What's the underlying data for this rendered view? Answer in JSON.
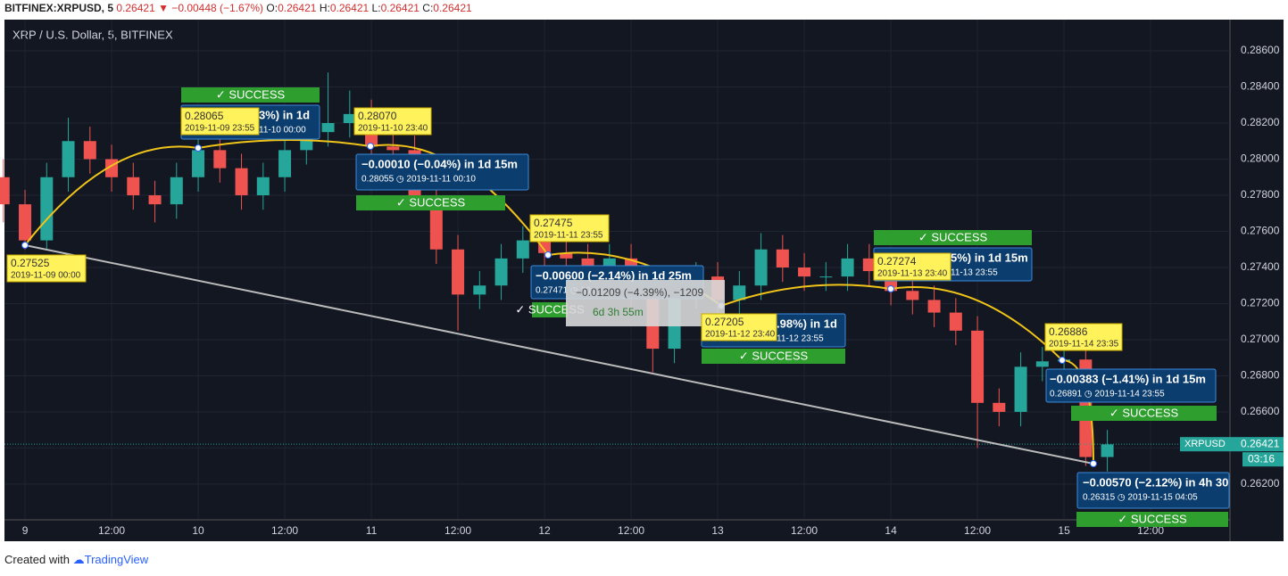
{
  "header": {
    "symbol": "BITFINEX:XRPUSD, 5",
    "last": "0.26421",
    "change": "▼ −0.00448 (−1.67%)",
    "ohlc": [
      {
        "label": "O:",
        "value": "0.26421"
      },
      {
        "label": "H:",
        "value": "0.26421"
      },
      {
        "label": "L:",
        "value": "0.26421"
      },
      {
        "label": "C:",
        "value": "0.26421"
      }
    ]
  },
  "chart_data": {
    "type": "candlestick",
    "title": "XRP / U.S. Dollar, 5, BITFINEX",
    "up_color": "#26a69a",
    "down_color": "#ef5350",
    "grid": true,
    "x": [
      -3,
      0,
      3,
      6,
      9,
      12,
      15,
      18,
      21,
      24,
      27,
      30,
      33,
      36,
      39,
      42,
      45,
      48,
      51,
      54,
      57,
      60,
      63,
      66,
      69,
      72,
      75,
      78,
      81,
      84,
      87,
      90,
      93,
      96,
      99,
      102,
      105,
      108,
      111,
      114,
      117,
      120,
      123,
      126,
      129,
      132,
      135,
      138,
      141,
      144,
      147,
      150
    ],
    "open": [
      0.279,
      0.2775,
      0.2755,
      0.279,
      0.281,
      0.28,
      0.279,
      0.278,
      0.2775,
      0.279,
      0.2805,
      0.2795,
      0.278,
      0.279,
      0.2805,
      0.2815,
      0.282,
      0.2825,
      0.2807,
      0.2805,
      0.278,
      0.275,
      0.2725,
      0.273,
      0.2745,
      0.2755,
      0.2748,
      0.2745,
      0.2735,
      0.2745,
      0.2725,
      0.2695,
      0.2725,
      0.2735,
      0.2722,
      0.273,
      0.275,
      0.274,
      0.2735,
      0.2735,
      0.2745,
      0.2738,
      0.2727,
      0.2722,
      0.2715,
      0.2705,
      0.2665,
      0.266,
      0.2685,
      0.2688,
      0.2689,
      0.2635
    ],
    "high": [
      0.28,
      0.2783,
      0.2798,
      0.2823,
      0.2818,
      0.2808,
      0.2798,
      0.2788,
      0.2798,
      0.2813,
      0.2813,
      0.2803,
      0.2798,
      0.2813,
      0.2823,
      0.2848,
      0.2838,
      0.2833,
      0.2815,
      0.2813,
      0.2788,
      0.2758,
      0.2738,
      0.2753,
      0.2763,
      0.2763,
      0.2756,
      0.2753,
      0.2753,
      0.2753,
      0.2733,
      0.2733,
      0.2743,
      0.2743,
      0.2738,
      0.2759,
      0.2758,
      0.2748,
      0.2743,
      0.2753,
      0.2753,
      0.2746,
      0.2735,
      0.273,
      0.2723,
      0.2713,
      0.2673,
      0.2693,
      0.2696,
      0.2697,
      0.2697,
      0.265
    ],
    "low": [
      0.2765,
      0.275,
      0.275,
      0.2782,
      0.2792,
      0.2782,
      0.2772,
      0.2765,
      0.2767,
      0.2782,
      0.2787,
      0.2772,
      0.2772,
      0.2782,
      0.2797,
      0.2807,
      0.2812,
      0.2799,
      0.2797,
      0.2772,
      0.2742,
      0.2705,
      0.2717,
      0.2722,
      0.2737,
      0.274,
      0.2737,
      0.2727,
      0.2727,
      0.2717,
      0.2682,
      0.2687,
      0.2717,
      0.2714,
      0.2714,
      0.2722,
      0.2732,
      0.2727,
      0.2727,
      0.2727,
      0.273,
      0.2719,
      0.2714,
      0.2707,
      0.2697,
      0.264,
      0.2652,
      0.2652,
      0.2677,
      0.268,
      0.263,
      0.2627
    ],
    "close": [
      0.2775,
      0.2755,
      0.279,
      0.281,
      0.28,
      0.279,
      0.278,
      0.2775,
      0.279,
      0.2805,
      0.2795,
      0.278,
      0.279,
      0.2805,
      0.2815,
      0.282,
      0.2825,
      0.2807,
      0.2805,
      0.278,
      0.275,
      0.2725,
      0.273,
      0.2745,
      0.2755,
      0.2748,
      0.2745,
      0.2735,
      0.2745,
      0.2725,
      0.2695,
      0.2725,
      0.2735,
      0.2722,
      0.273,
      0.275,
      0.274,
      0.2735,
      0.2735,
      0.2745,
      0.2738,
      0.2727,
      0.2722,
      0.2715,
      0.2705,
      0.2665,
      0.266,
      0.2685,
      0.2688,
      0.2689,
      0.2635,
      0.2642
    ],
    "xlim": [
      -2.85,
      167
    ],
    "ylim": [
      0.26007,
      0.28773
    ],
    "xticks": [
      {
        "value": 0,
        "label": "9"
      },
      {
        "value": 12,
        "label": "12:00"
      },
      {
        "value": 24,
        "label": "10"
      },
      {
        "value": 36,
        "label": "12:00"
      },
      {
        "value": 48,
        "label": "11"
      },
      {
        "value": 60,
        "label": "12:00"
      },
      {
        "value": 72,
        "label": "12"
      },
      {
        "value": 84,
        "label": "12:00"
      },
      {
        "value": 96,
        "label": "13"
      },
      {
        "value": 108,
        "label": "12:00"
      },
      {
        "value": 120,
        "label": "14"
      },
      {
        "value": 132,
        "label": "12:00"
      },
      {
        "value": 144,
        "label": "15"
      },
      {
        "value": 156,
        "label": "12:00"
      }
    ],
    "yticks": [
      {
        "value": 0.262,
        "label": "0.26200"
      },
      {
        "value": 0.264,
        "label": "0.26400"
      },
      {
        "value": 0.266,
        "label": "0.26600"
      },
      {
        "value": 0.268,
        "label": "0.26800"
      },
      {
        "value": 0.27,
        "label": "0.27000"
      },
      {
        "value": 0.272,
        "label": "0.27200"
      },
      {
        "value": 0.274,
        "label": "0.27400"
      },
      {
        "value": 0.276,
        "label": "0.27600"
      },
      {
        "value": 0.278,
        "label": "0.27800"
      },
      {
        "value": 0.28,
        "label": "0.28000"
      },
      {
        "value": 0.282,
        "label": "0.28200"
      },
      {
        "value": 0.284,
        "label": "0.28400"
      },
      {
        "value": 0.286,
        "label": "0.28600"
      }
    ]
  },
  "annotations": {
    "measures": [
      {
        "line1": "3%) in 1d",
        "line2": "11-10  00:00"
      },
      {
        "line1": "−0.00010 (−0.04%) in 1d 15m",
        "line2": "0.28055 ◷ 2019-11-11  00:10"
      },
      {
        "line1": "−0.00600 (−2.14%) in 1d 25m",
        "line2": "0.27471 ◷ 20"
      },
      {
        "line1": ".98%) in 1d",
        "line2": "11-12  23:55"
      },
      {
        "line1": "5%) in 1d 15m",
        "line2": "11-13  23:55"
      },
      {
        "line1": "−0.00383 (−1.41%) in 1d 15m",
        "line2": "0.26891 ◷ 2019-11-14  23:55"
      },
      {
        "line1": "−0.00570 (−2.12%) in 4h 30",
        "line2": "0.26315 ◷ 2019-11-15  04:05"
      }
    ],
    "success": [
      "✓ SUCCESS",
      "✓ SUCCESS",
      "✓ SUCCESS",
      "✓ SUCCESS",
      "✓ SUCCESS",
      "✓ SUCCESS",
      "✓ SUCCESS"
    ],
    "price_tags": [
      {
        "price": "0.27525",
        "time": "2019-11-09 00:00"
      },
      {
        "price": "0.28065",
        "time": "2019-11-09 23:55"
      },
      {
        "price": "0.28070",
        "time": "2019-11-10 23:40"
      },
      {
        "price": "0.27475",
        "time": "2019-11-11 23:55"
      },
      {
        "price": "0.27205",
        "time": "2019-11-12 23:40"
      },
      {
        "price": "0.27274",
        "time": "2019-11-13 23:40"
      },
      {
        "price": "0.26886",
        "time": "2019-11-14 23:35"
      }
    ]
  },
  "measure_tool": {
    "change": "−0.01209 (−4.39%), −1209",
    "span": "6d 3h 55m"
  },
  "price_tag": {
    "symbol": "XRPUSD",
    "value": 0.26421,
    "countdown": "03:16"
  },
  "footer": {
    "prefix": "Created with",
    "brand": "TradingView"
  }
}
